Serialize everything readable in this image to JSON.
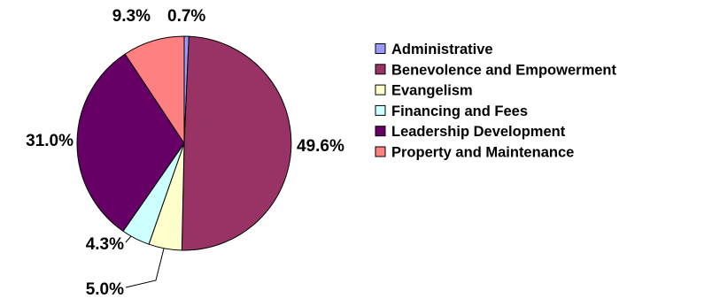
{
  "chart_data": {
    "type": "pie",
    "title": "",
    "legend_position": "right",
    "categories": [
      "Administrative",
      "Benevolence and Empowerment",
      "Evangelism",
      "Financing and Fees",
      "Leadership Development",
      "Property and Maintenance"
    ],
    "values": [
      0.7,
      49.6,
      5.0,
      4.3,
      31.0,
      9.3
    ],
    "labels": [
      "0.7%",
      "49.6%",
      "5.0%",
      "4.3%",
      "31.0%",
      "9.3%"
    ],
    "colors": [
      "#9999FF",
      "#993366",
      "#FFFFCC",
      "#CCFFFF",
      "#660066",
      "#FF8080"
    ]
  }
}
